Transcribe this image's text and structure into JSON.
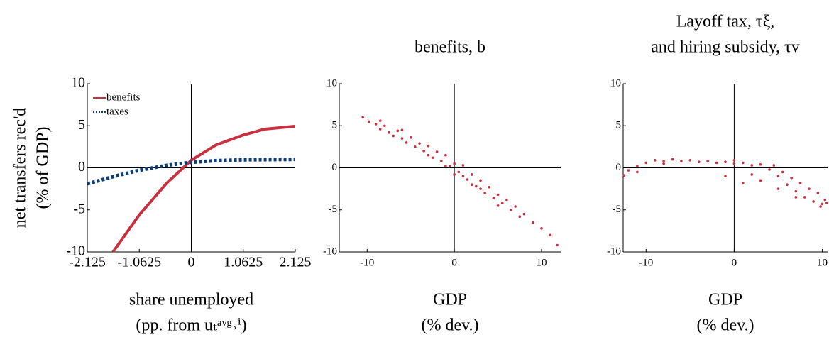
{
  "chart_data": [
    {
      "type": "line",
      "ylabel": [
        "net transfers rec'd",
        "(% of GDP)"
      ],
      "xlabel": [
        "share unemployed",
        "(pp. from uₜᵃᵛᵍ˒ⁱ)"
      ],
      "xlim": [
        -2.125,
        2.125
      ],
      "xticks": [
        -2.125,
        -1.0625,
        0,
        1.0625,
        2.125
      ],
      "ylim": [
        -10,
        10
      ],
      "yticks": [
        -10,
        -5,
        0,
        5,
        10
      ],
      "legend": "upper left",
      "series": [
        {
          "name": "benefits",
          "color": "#c8303f",
          "style": "solid",
          "x": [
            -1.6,
            -1.0625,
            -0.5,
            0,
            0.5,
            1.0625,
            1.5,
            2.125
          ],
          "values": [
            -10,
            -5.6,
            -1.8,
            0.9,
            2.7,
            3.9,
            4.6,
            4.95
          ]
        },
        {
          "name": "taxes",
          "color": "#0d3d78",
          "style": "dotted",
          "x": [
            -2.125,
            -1.5,
            -1.0625,
            -0.5,
            0,
            0.5,
            1.0625,
            2.125
          ],
          "values": [
            -1.9,
            -0.9,
            -0.3,
            0.3,
            0.65,
            0.85,
            0.95,
            1.0
          ]
        }
      ]
    },
    {
      "type": "scatter",
      "title": [
        "benefits, b"
      ],
      "xlabel": [
        "GDP",
        "(% dev.)"
      ],
      "xlim": [
        -13.2,
        12.2
      ],
      "xticks": [
        -10,
        0,
        10
      ],
      "ylim": [
        -10,
        10
      ],
      "yticks": [
        -10,
        -5,
        0,
        5,
        10
      ],
      "color": "#c8303f",
      "x": [
        -10.5,
        -9.8,
        -9,
        -8.5,
        -8,
        -7.5,
        -7,
        -6.5,
        -6,
        -5.5,
        -5,
        -4.5,
        -4,
        -3.5,
        -3,
        -2.5,
        -2,
        -1.5,
        -1,
        -0.5,
        0,
        0,
        0.5,
        1,
        1.5,
        2,
        2.5,
        3,
        3.5,
        4,
        4.5,
        5,
        5.5,
        6,
        6.5,
        7,
        7.5,
        8,
        9,
        10,
        11,
        11.8,
        -6,
        -3,
        1,
        3,
        -8.5,
        5,
        2,
        -1
      ],
      "values": [
        6.0,
        5.5,
        5.2,
        4.6,
        5.0,
        4.2,
        3.8,
        4.4,
        3.5,
        3.0,
        3.6,
        2.5,
        2.9,
        2.0,
        2.6,
        1.2,
        1.9,
        0.8,
        1.5,
        0.2,
        0.5,
        -0.8,
        -0.5,
        0.3,
        -1.4,
        -0.8,
        -2.2,
        -1.5,
        -3.0,
        -2.3,
        -3.6,
        -3.2,
        -4.2,
        -3.8,
        -5.0,
        -4.6,
        -5.8,
        -5.5,
        -6.5,
        -7.2,
        -8.0,
        -9.2,
        4.5,
        1.5,
        -1.0,
        -2.5,
        5.6,
        -4.5,
        -2.0,
        0.2
      ]
    },
    {
      "type": "scatter",
      "title": [
        "Layoff tax, τξ,",
        "and hiring subsidy, τv"
      ],
      "xlabel": [
        "GDP",
        "(% dev.)"
      ],
      "xlim": [
        -12.6,
        10.6
      ],
      "xticks": [
        -10,
        0,
        10
      ],
      "ylim": [
        -10,
        10
      ],
      "yticks": [
        -10,
        -5,
        0,
        5,
        10
      ],
      "color": "#c8303f",
      "x": [
        -12.5,
        -12,
        -11,
        -10,
        -9,
        -8,
        -7,
        -6,
        -5,
        -4,
        -3,
        -2,
        -1,
        0,
        1,
        2,
        3,
        4,
        4.5,
        5,
        5.5,
        6,
        6.5,
        7,
        7.5,
        8,
        8.5,
        9,
        9.5,
        10,
        10.3,
        10.5,
        1,
        -1,
        2,
        3,
        5,
        7,
        -8,
        0,
        9.8,
        -11
      ],
      "values": [
        -0.9,
        -0.3,
        0.2,
        0.6,
        0.9,
        0.8,
        1.0,
        0.8,
        0.9,
        0.7,
        0.8,
        0.6,
        0.7,
        0.5,
        0.6,
        0.3,
        0.4,
        -0.2,
        0.3,
        -1.0,
        -0.5,
        -2.0,
        -1.2,
        -2.8,
        -1.8,
        -3.5,
        -2.5,
        -4.0,
        -3.0,
        -4.3,
        -3.8,
        -4.2,
        -1.8,
        -1.0,
        -0.8,
        -1.5,
        -2.5,
        -3.5,
        0.5,
        0.9,
        -4.6,
        -0.5
      ]
    }
  ]
}
